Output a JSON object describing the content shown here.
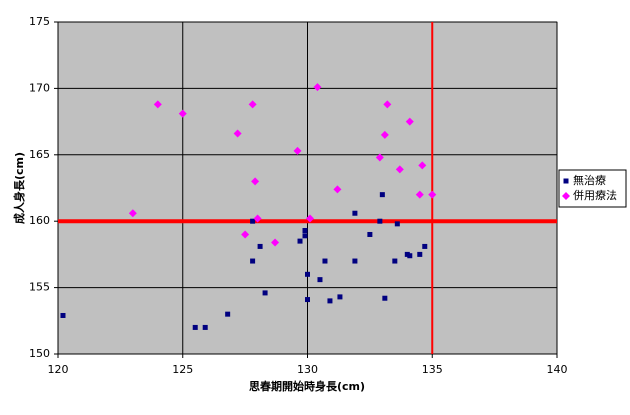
{
  "chart_data": {
    "type": "scatter",
    "x_label": "思春期開始時身長(cm)",
    "y_label": "成人身長(cm)",
    "xlim": [
      120,
      140
    ],
    "xticks": [
      120,
      125,
      130,
      135,
      140
    ],
    "ylim": [
      150,
      175
    ],
    "yticks": [
      150,
      155,
      160,
      165,
      170,
      175
    ],
    "grid": true,
    "legend": "right",
    "reference_lines": {
      "color": "#ff0000",
      "x": 135,
      "y": 160
    },
    "series": [
      {
        "name": "無治療",
        "color": "#000080",
        "marker": "square",
        "x": [
          120.2,
          125.5,
          125.9,
          126.8,
          128.3,
          127.8,
          127.8,
          128.1,
          129.7,
          129.9,
          129.9,
          130.0,
          130.0,
          130.5,
          130.7,
          130.9,
          131.3,
          131.9,
          131.9,
          132.5,
          133.0,
          132.9,
          133.1,
          133.5,
          133.6,
          134.0,
          134.1,
          134.5,
          134.7
        ],
        "values": [
          152.9,
          152.0,
          152.0,
          153.0,
          154.6,
          157.0,
          160.0,
          158.1,
          158.5,
          159.3,
          158.9,
          156.0,
          154.1,
          155.6,
          157.0,
          154.0,
          154.3,
          160.6,
          157.0,
          159.0,
          162.0,
          160.0,
          154.2,
          157.0,
          159.8,
          157.5,
          157.4,
          157.5,
          158.1
        ]
      },
      {
        "name": "併用療法",
        "color": "#ff00ff",
        "marker": "diamond",
        "x": [
          123.0,
          124.0,
          125.0,
          127.2,
          127.8,
          127.5,
          127.9,
          128.0,
          128.7,
          129.6,
          130.1,
          130.4,
          131.2,
          132.9,
          133.1,
          133.2,
          133.7,
          134.1,
          134.5,
          134.6,
          135.0
        ],
        "values": [
          160.6,
          168.8,
          168.1,
          166.6,
          168.8,
          159.0,
          163.0,
          160.2,
          158.4,
          165.3,
          160.2,
          170.1,
          162.4,
          164.8,
          166.5,
          168.8,
          163.9,
          167.5,
          162.0,
          164.2,
          162.0
        ]
      }
    ]
  }
}
